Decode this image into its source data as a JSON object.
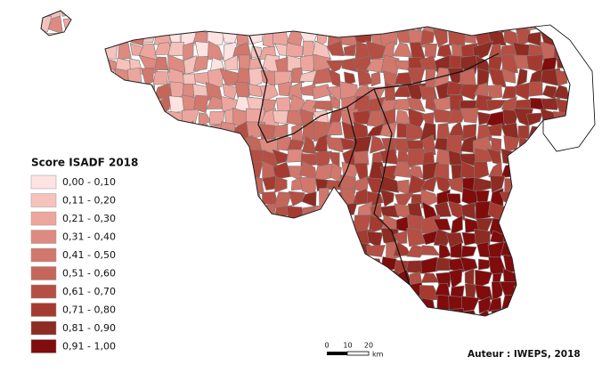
{
  "legend": {
    "title": "Score ISADF 2018",
    "items": [
      {
        "label": "0,00 - 0,10",
        "color": "#fde3e1"
      },
      {
        "label": "0,11 - 0,20",
        "color": "#f5c2bc"
      },
      {
        "label": "0,21 - 0,30",
        "color": "#eda69e"
      },
      {
        "label": "0,31 - 0,40",
        "color": "#dd8a80"
      },
      {
        "label": "0,41 - 0,50",
        "color": "#d2776c"
      },
      {
        "label": "0,51 - 0,60",
        "color": "#c5665a"
      },
      {
        "label": "0,61 - 0,70",
        "color": "#b54e43"
      },
      {
        "label": "0,71 - 0,80",
        "color": "#a53b30"
      },
      {
        "label": "0,81 - 0,90",
        "color": "#8e2b22"
      },
      {
        "label": "0,91 - 1,00",
        "color": "#800c0c"
      }
    ]
  },
  "scale_bar": {
    "ticks": [
      "0",
      "10",
      "20"
    ],
    "unit": "km"
  },
  "credit": "Auteur : IWEPS, 2018"
}
